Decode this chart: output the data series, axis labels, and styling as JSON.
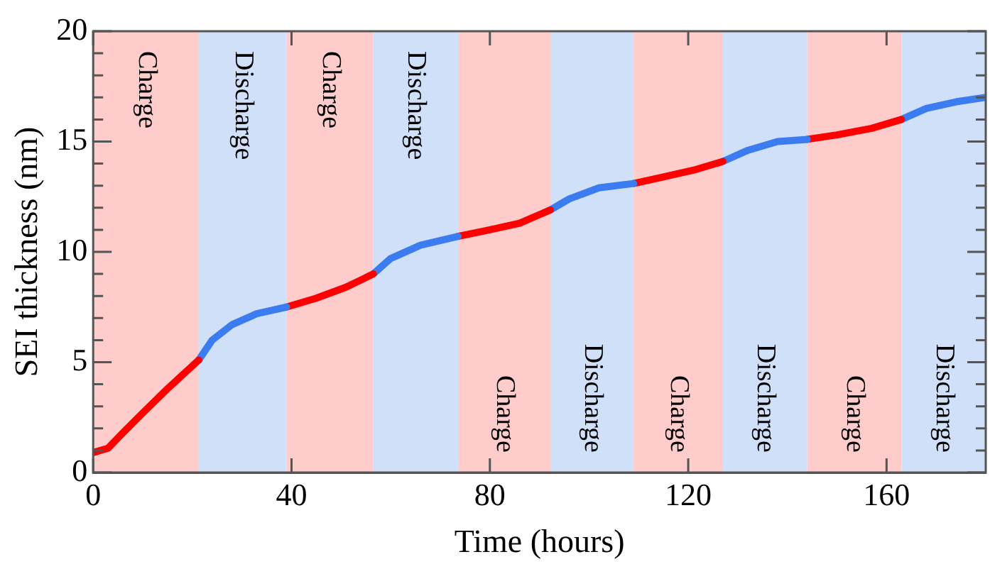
{
  "chart_data": {
    "type": "line",
    "xlabel": "Time (hours)",
    "ylabel": "SEI thickness (nm)",
    "xlim": [
      0,
      180
    ],
    "xticks": [
      0,
      40,
      80,
      120,
      160
    ],
    "ylim": [
      0,
      20
    ],
    "yticks": [
      0,
      {
        "value": 1,
        "label": null
      },
      {
        "value": 2,
        "label": null
      },
      {
        "value": 3,
        "label": null
      },
      {
        "value": 4,
        "label": null
      },
      5,
      {
        "value": 6,
        "label": null
      },
      {
        "value": 7,
        "label": null
      },
      {
        "value": 8,
        "label": null
      },
      {
        "value": 9,
        "label": null
      },
      10,
      {
        "value": 11,
        "label": null
      },
      {
        "value": 12,
        "label": null
      },
      {
        "value": 13,
        "label": null
      },
      {
        "value": 14,
        "label": null
      },
      15,
      {
        "value": 16,
        "label": null
      },
      {
        "value": 17,
        "label": null
      },
      {
        "value": 18,
        "label": null
      },
      {
        "value": 19,
        "label": null
      },
      20
    ],
    "grid": false,
    "legend": false,
    "marker": "none",
    "line_style": "solid",
    "series": [
      {
        "color": "#ff0000",
        "x": [
          0,
          3,
          6,
          10,
          15,
          21.3
        ],
        "values": [
          0.9,
          1.1,
          1.8,
          2.7,
          3.8,
          5.1
        ]
      },
      {
        "color": "#3b7df0",
        "x": [
          21.3,
          24,
          28,
          33,
          39
        ],
        "values": [
          5.1,
          6.0,
          6.7,
          7.2,
          7.5
        ]
      },
      {
        "color": "#ff0000",
        "x": [
          39,
          45,
          51,
          56.5
        ],
        "values": [
          7.5,
          7.9,
          8.4,
          9.0
        ]
      },
      {
        "color": "#3b7df0",
        "x": [
          56.5,
          60,
          66,
          73.6
        ],
        "values": [
          9.0,
          9.7,
          10.3,
          10.7
        ]
      },
      {
        "color": "#ff0000",
        "x": [
          73.6,
          80,
          86,
          92.2
        ],
        "values": [
          10.7,
          11.0,
          11.3,
          11.9
        ]
      },
      {
        "color": "#3b7df0",
        "x": [
          92.2,
          96,
          102,
          109
        ],
        "values": [
          11.9,
          12.4,
          12.9,
          13.1
        ]
      },
      {
        "color": "#ff0000",
        "x": [
          109,
          115,
          121,
          127
        ],
        "values": [
          13.1,
          13.4,
          13.7,
          14.1
        ]
      },
      {
        "color": "#3b7df0",
        "x": [
          127,
          132,
          138,
          144
        ],
        "values": [
          14.1,
          14.6,
          15.0,
          15.1
        ]
      },
      {
        "color": "#ff0000",
        "x": [
          144,
          150,
          157,
          163
        ],
        "values": [
          15.1,
          15.3,
          15.6,
          16.0
        ]
      },
      {
        "color": "#3b7df0",
        "x": [
          163,
          168,
          174,
          180
        ],
        "values": [
          16.0,
          16.5,
          16.8,
          17.0
        ]
      }
    ],
    "bands": [
      {
        "axis": "x",
        "from": 0,
        "to": 21.3,
        "label": "Charge",
        "color": "#ffcccc"
      },
      {
        "axis": "x",
        "from": 21.3,
        "to": 39,
        "label": "Discharge",
        "color": "#d0e0f8"
      },
      {
        "axis": "x",
        "from": 39,
        "to": 56.5,
        "label": "Charge",
        "color": "#ffcccc"
      },
      {
        "axis": "x",
        "from": 56.5,
        "to": 73.6,
        "label": "Discharge",
        "color": "#d0e0f8"
      },
      {
        "axis": "x",
        "from": 73.6,
        "to": 92.2,
        "label": "Charge",
        "color": "#ffcccc"
      },
      {
        "axis": "x",
        "from": 92.2,
        "to": 109,
        "label": "Discharge",
        "color": "#d0e0f8"
      },
      {
        "axis": "x",
        "from": 109,
        "to": 127,
        "label": "Charge",
        "color": "#ffcccc"
      },
      {
        "axis": "x",
        "from": 127,
        "to": 144,
        "label": "Discharge",
        "color": "#d0e0f8"
      },
      {
        "axis": "x",
        "from": 144,
        "to": 163,
        "label": "Charge",
        "color": "#ffcccc"
      },
      {
        "axis": "x",
        "from": 163,
        "to": 180,
        "label": "Discharge",
        "color": "#d0e0f8"
      }
    ]
  }
}
